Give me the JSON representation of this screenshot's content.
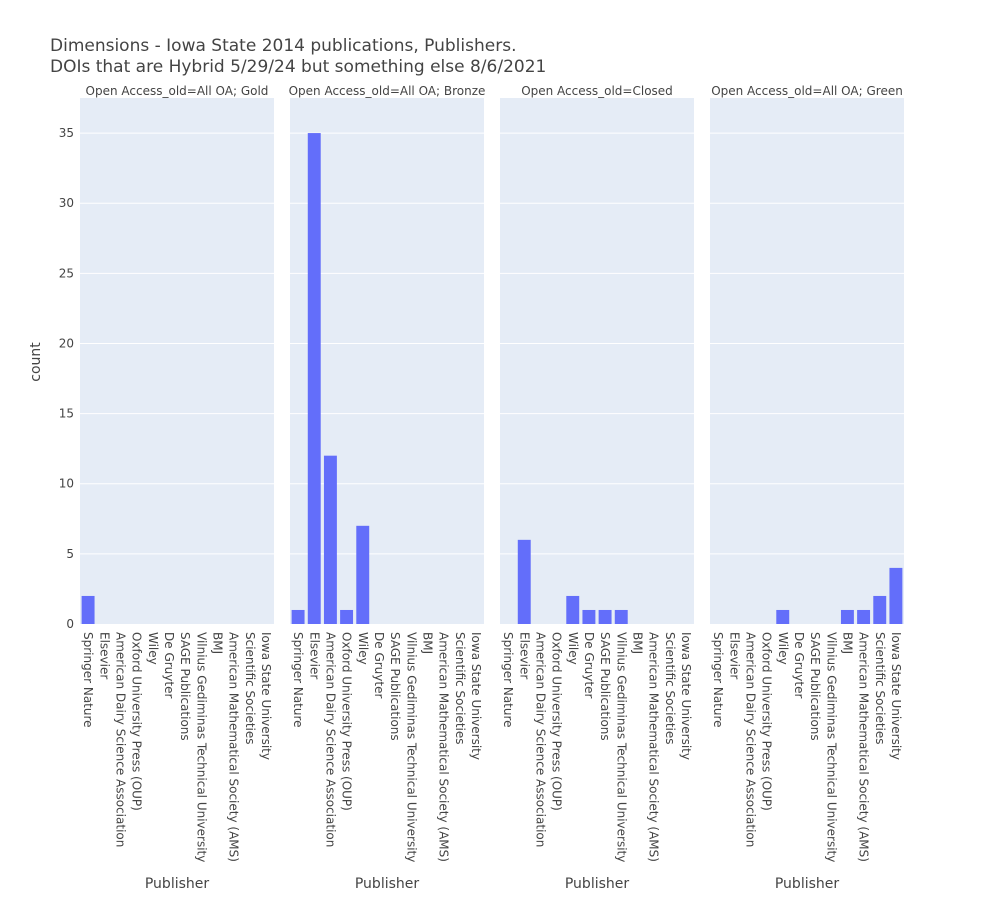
{
  "chart_data": {
    "type": "bar",
    "title_lines": [
      "Dimensions - Iowa State 2014 publications, Publishers.",
      "DOIs that are Hybrid 5/29/24 but something else 8/6/2021"
    ],
    "xlabel": "Publisher",
    "ylabel": "count",
    "ylim": [
      0,
      37.5
    ],
    "yticks": [
      0,
      5,
      10,
      15,
      20,
      25,
      30,
      35
    ],
    "grid": true,
    "bar_color": "#636efa",
    "plot_bg": "#e5ecf6",
    "categories": [
      "Springer Nature",
      "Elsevier",
      "American Dairy Science Association",
      "Oxford University Press (OUP)",
      "Wiley",
      "De Gruyter",
      "SAGE Publications",
      "Vilnius Gediminas Technical University",
      "BMJ",
      "American Mathematical Society (AMS)",
      "Scientific Societies",
      "Iowa State University"
    ],
    "facets": [
      {
        "title": "Open Access_old=All OA; Gold",
        "values": [
          2,
          0,
          0,
          0,
          0,
          0,
          0,
          0,
          0,
          0,
          0,
          0
        ]
      },
      {
        "title": "Open Access_old=All OA; Bronze",
        "values": [
          1,
          35,
          12,
          1,
          7,
          0,
          0,
          0,
          0,
          0,
          0,
          0
        ]
      },
      {
        "title": "Open Access_old=Closed",
        "values": [
          0,
          6,
          0,
          0,
          2,
          1,
          1,
          1,
          0,
          0,
          0,
          0
        ]
      },
      {
        "title": "Open Access_old=All OA; Green",
        "values": [
          0,
          0,
          0,
          0,
          1,
          0,
          0,
          0,
          1,
          1,
          2,
          4
        ]
      }
    ]
  }
}
